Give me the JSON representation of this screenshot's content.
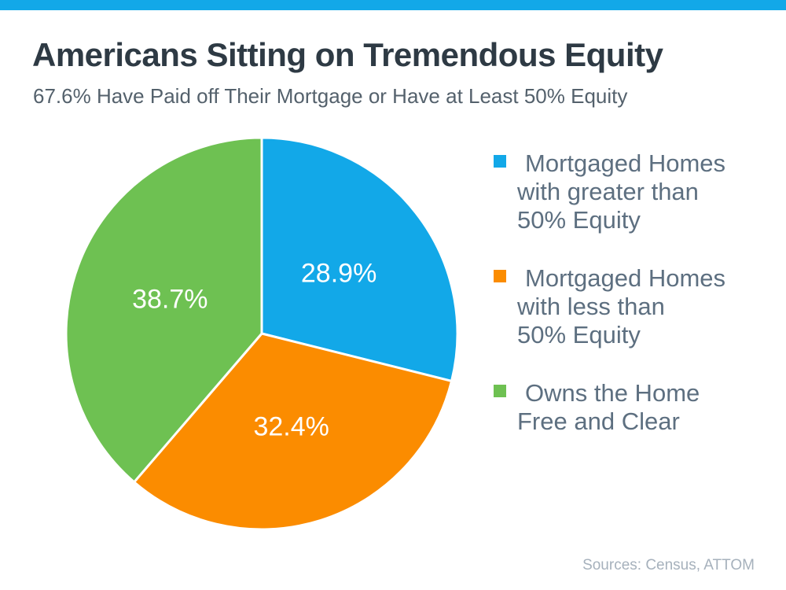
{
  "page": {
    "title": "Americans Sitting on Tremendous Equity",
    "subtitle": "67.6% Have Paid off Their Mortgage or Have at Least 50% Equity",
    "source_note": "Sources: Census, ATTOM"
  },
  "colors": {
    "accent_bar": "#12A8E8",
    "title_text": "#2E3A44",
    "subtitle_text": "#54616C",
    "legend_text": "#5D6F80",
    "source_text": "#A6B1BC",
    "slice_label_text": "#FFFFFF"
  },
  "chart_data": {
    "type": "pie",
    "title": "Americans Sitting on Tremendous Equity",
    "subtitle": "67.6% Have Paid off Their Mortgage or Have at Least 50% Equity",
    "units": "percent",
    "direction": "clockwise",
    "start_angle_deg": 0,
    "legend_position": "right",
    "slices": [
      {
        "label": "Mortgaged Homes with greater than 50% Equity",
        "value": 28.9,
        "data_label": "28.9%",
        "color": "#12A8E8"
      },
      {
        "label": "Mortgaged Homes with less than 50% Equity",
        "value": 32.4,
        "data_label": "32.4%",
        "color": "#FB8C00"
      },
      {
        "label": "Owns the Home Free and Clear",
        "value": 38.7,
        "data_label": "38.7%",
        "color": "#6EC152"
      }
    ]
  },
  "legend": {
    "items": [
      {
        "color": "#12A8E8",
        "lines": [
          "Mortgaged Homes",
          "with greater than",
          "50% Equity"
        ]
      },
      {
        "color": "#FB8C00",
        "lines": [
          "Mortgaged Homes",
          "with less than",
          "50% Equity"
        ]
      },
      {
        "color": "#6EC152",
        "lines": [
          "Owns the Home",
          "Free and Clear"
        ]
      }
    ]
  }
}
